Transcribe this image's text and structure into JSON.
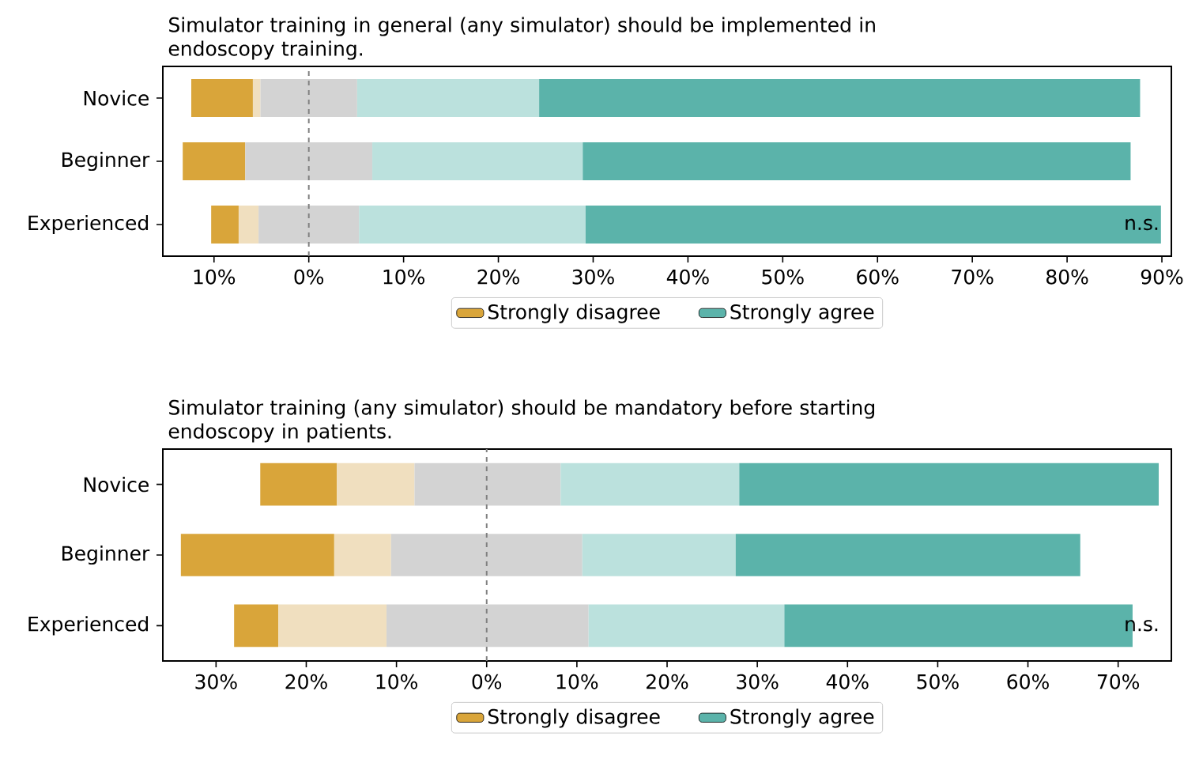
{
  "chart_data": [
    {
      "type": "bar",
      "orientation": "horizontal",
      "legend": "bottom",
      "title": "Simulator training in general (any simulator) should be implemented in endoscopy training.",
      "categories": [
        "Novice",
        "Beginner",
        "Experienced"
      ],
      "series": [
        {
          "name": "Strongly disagree",
          "color": "#d9a53a",
          "base": [
            -12.4,
            -13.3,
            -10.3
          ],
          "values": [
            6.5,
            6.6,
            2.9
          ]
        },
        {
          "color": "#f0dfbf",
          "base": [
            -5.9,
            null,
            -7.4
          ],
          "values": [
            0.8,
            null,
            2.1
          ]
        },
        {
          "color": "#d3d3d3",
          "base": [
            -5.1,
            -6.7,
            -5.3
          ],
          "values": [
            10.2,
            13.4,
            10.6
          ]
        },
        {
          "color": "#bbe1dd",
          "base": [
            5.1,
            6.7,
            5.3
          ],
          "values": [
            19.2,
            22.2,
            23.9
          ]
        },
        {
          "name": "Strongly agree",
          "color": "#5bb3aa",
          "base": [
            24.3,
            28.9,
            29.2
          ],
          "values": [
            63.4,
            57.8,
            60.7
          ]
        }
      ],
      "xlim": [
        -15.4,
        91.0
      ],
      "xticks": [
        {
          "value": -10,
          "label": "10%"
        },
        {
          "value": 0,
          "label": "0%"
        },
        {
          "value": 10,
          "label": "10%"
        },
        {
          "value": 20,
          "label": "20%"
        },
        {
          "value": 30,
          "label": "30%"
        },
        {
          "value": 40,
          "label": "40%"
        },
        {
          "value": 50,
          "label": "50%"
        },
        {
          "value": 60,
          "label": "60%"
        },
        {
          "value": 70,
          "label": "70%"
        },
        {
          "value": 80,
          "label": "80%"
        },
        {
          "value": 90,
          "label": "90%"
        }
      ],
      "ref_lines": [
        {
          "axis": "x",
          "value": 0,
          "color": "#808080",
          "line_style": "dashed"
        }
      ],
      "annotations": [
        "n.s."
      ]
    },
    {
      "type": "bar",
      "orientation": "horizontal",
      "legend": "bottom",
      "title": "Simulator training (any simulator) should be mandatory before starting endoscopy in patients.",
      "categories": [
        "Novice",
        "Beginner",
        "Experienced"
      ],
      "series": [
        {
          "name": "Strongly disagree",
          "color": "#d9a53a",
          "base": [
            -25.1,
            -33.9,
            -28.0
          ],
          "values": [
            8.5,
            17.0,
            4.9
          ]
        },
        {
          "color": "#f0dfbf",
          "base": [
            -16.6,
            -16.9,
            -23.1
          ],
          "values": [
            8.6,
            6.3,
            12.0
          ]
        },
        {
          "color": "#d3d3d3",
          "base": [
            -8.0,
            -10.6,
            -11.1
          ],
          "values": [
            16.2,
            21.2,
            22.4
          ]
        },
        {
          "color": "#bbe1dd",
          "base": [
            8.2,
            10.6,
            11.3
          ],
          "values": [
            19.8,
            17.0,
            21.7
          ]
        },
        {
          "name": "Strongly agree",
          "color": "#5bb3aa",
          "base": [
            28.0,
            27.6,
            33.0
          ],
          "values": [
            46.5,
            38.2,
            38.6
          ]
        }
      ],
      "xlim": [
        -35.9,
        75.9
      ],
      "xticks": [
        {
          "value": -30,
          "label": "30%"
        },
        {
          "value": -20,
          "label": "20%"
        },
        {
          "value": -10,
          "label": "10%"
        },
        {
          "value": 0,
          "label": "0%"
        },
        {
          "value": 10,
          "label": "10%"
        },
        {
          "value": 20,
          "label": "20%"
        },
        {
          "value": 30,
          "label": "30%"
        },
        {
          "value": 40,
          "label": "40%"
        },
        {
          "value": 50,
          "label": "50%"
        },
        {
          "value": 60,
          "label": "60%"
        },
        {
          "value": 70,
          "label": "70%"
        }
      ],
      "ref_lines": [
        {
          "axis": "x",
          "value": 0,
          "color": "#808080",
          "line_style": "dashed"
        }
      ],
      "annotations": [
        "n.s."
      ]
    }
  ]
}
